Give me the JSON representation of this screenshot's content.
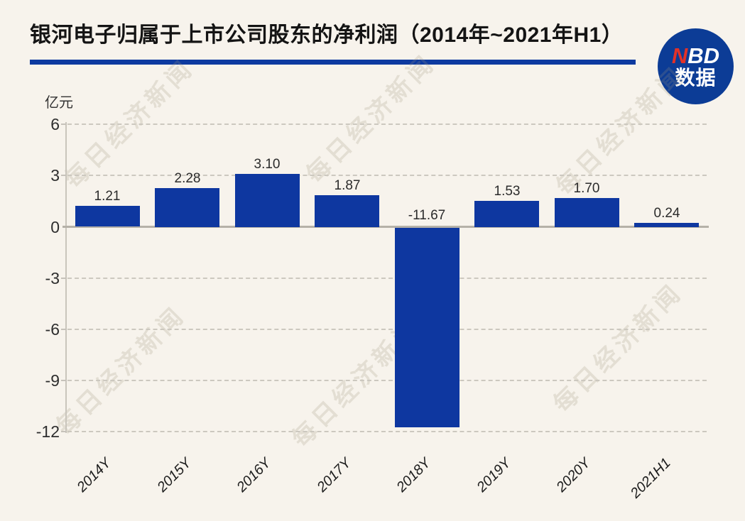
{
  "page": {
    "background": "#f7f3ec"
  },
  "header": {
    "title": "银河电子归属于上市公司股东的净利润（2014年~2021年H1）",
    "divider_color": "#0d3aa0"
  },
  "logo": {
    "line1_red": "N",
    "line1_white": "BD",
    "line2": "数据",
    "circle_color": "#0c3c96",
    "n_color": "#e23128"
  },
  "watermark": {
    "text": "每日经济新闻"
  },
  "chart_data": {
    "type": "bar",
    "title": "银河电子归属于上市公司股东的净利润（2014年~2021年H1）",
    "xlabel": "",
    "ylabel": "亿元",
    "categories": [
      "2014Y",
      "2015Y",
      "2016Y",
      "2017Y",
      "2018Y",
      "2019Y",
      "2020Y",
      "2021H1"
    ],
    "values": [
      1.21,
      2.28,
      3.1,
      1.87,
      -11.67,
      1.53,
      1.7,
      0.24
    ],
    "value_labels": [
      "1.21",
      "2.28",
      "3.10",
      "1.87",
      "-11.67",
      "1.53",
      "1.70",
      "0.24"
    ],
    "y_ticks": [
      6,
      3,
      0,
      -3,
      -6,
      -9,
      -12
    ],
    "ylim": [
      -12,
      6
    ],
    "grid": "dashed-horizontal",
    "legend": "none",
    "bar_color": "#0e37a0"
  }
}
